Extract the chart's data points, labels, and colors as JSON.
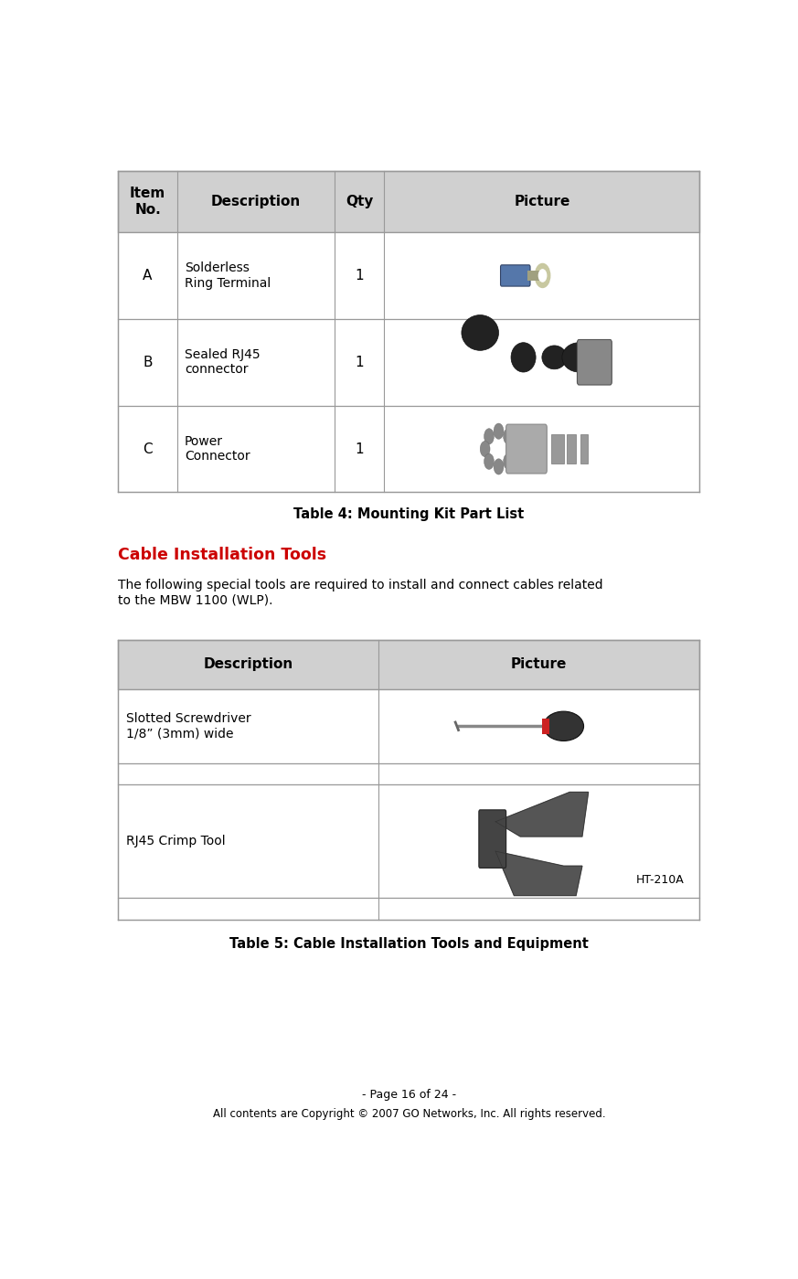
{
  "page_width": 8.73,
  "page_height": 13.99,
  "background_color": "#ffffff",
  "table4_header_bg": "#d0d0d0",
  "table4_caption": "Table 4: Mounting Kit Part List",
  "table4_rows": [
    {
      "item": "A",
      "description": "Solderless\nRing Terminal",
      "qty": "1"
    },
    {
      "item": "B",
      "description": "Sealed RJ45\nconnector",
      "qty": "1"
    },
    {
      "item": "C",
      "description": "Power\nConnector",
      "qty": "1"
    }
  ],
  "section_title": "Cable Installation Tools",
  "section_title_color": "#cc0000",
  "section_body": "The following special tools are required to install and connect cables related\nto the MBW 1100 (WLP).",
  "table5_header_bg": "#d0d0d0",
  "table5_caption": "Table 5: Cable Installation Tools and Equipment",
  "footer_page": "- Page 16 of 24 -",
  "footer_copy": "All contents are Copyright © 2007 GO Networks, Inc. All rights reserved.",
  "border_color": "#999999",
  "text_color": "#000000"
}
